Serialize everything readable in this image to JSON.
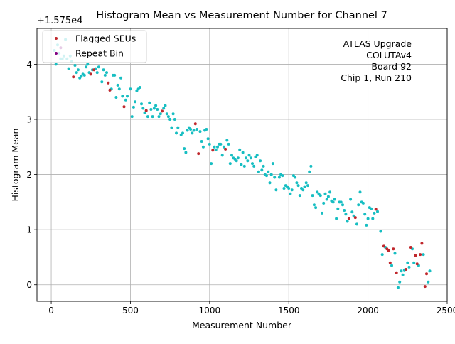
{
  "chart_data": {
    "type": "scatter",
    "title": "Histogram Mean vs Measurement Number for Channel 7",
    "xlabel": "Measurement Number",
    "ylabel": "Histogram Mean",
    "y_offset_label": "+1.575e4",
    "xlim": [
      -90,
      2500
    ],
    "ylim": [
      -0.3,
      4.65
    ],
    "xticks": [
      0,
      500,
      1000,
      1500,
      2000,
      2500
    ],
    "yticks": [
      0,
      1,
      2,
      3,
      4
    ],
    "grid": true,
    "legend_position": "top-left",
    "annotation_lines": [
      "ATLAS Upgrade",
      "COLUTAv4",
      "Board 92",
      "Chip 1, Run 210"
    ],
    "series": [
      {
        "name": "Flagged SEUs",
        "color": "#c0282d",
        "points": [
          [
            140,
            3.77
          ],
          [
            250,
            3.82
          ],
          [
            270,
            3.9
          ],
          [
            360,
            3.66
          ],
          [
            370,
            3.53
          ],
          [
            460,
            3.23
          ],
          [
            600,
            3.16
          ],
          [
            700,
            3.15
          ],
          [
            910,
            2.92
          ],
          [
            930,
            2.38
          ],
          [
            1020,
            2.44
          ],
          [
            1100,
            2.46
          ],
          [
            1880,
            1.2
          ],
          [
            1920,
            1.22
          ],
          [
            2050,
            1.37
          ],
          [
            2100,
            0.7
          ],
          [
            2120,
            0.65
          ],
          [
            2130,
            0.62
          ],
          [
            2140,
            0.4
          ],
          [
            2160,
            0.65
          ],
          [
            2180,
            0.22
          ],
          [
            2240,
            0.28
          ],
          [
            2270,
            0.68
          ],
          [
            2300,
            0.53
          ],
          [
            2310,
            0.38
          ],
          [
            2330,
            0.55
          ],
          [
            2340,
            0.75
          ],
          [
            2360,
            -0.03
          ],
          [
            2370,
            0.2
          ]
        ]
      },
      {
        "name": "Repeat Bin",
        "color": "#800080",
        "points": [
          [
            60,
            4.3
          ]
        ]
      },
      {
        "name": "",
        "color": "#17bec2",
        "points": [
          [
            20,
            4.25
          ],
          [
            30,
            4.0
          ],
          [
            40,
            4.35
          ],
          [
            50,
            4.2
          ],
          [
            60,
            4.1
          ],
          [
            70,
            4.1
          ],
          [
            80,
            4.15
          ],
          [
            90,
            4.45
          ],
          [
            100,
            4.1
          ],
          [
            110,
            3.92
          ],
          [
            120,
            4.15
          ],
          [
            130,
            4.05
          ],
          [
            150,
            3.98
          ],
          [
            160,
            3.85
          ],
          [
            170,
            3.9
          ],
          [
            180,
            3.75
          ],
          [
            190,
            3.78
          ],
          [
            200,
            3.82
          ],
          [
            210,
            3.8
          ],
          [
            220,
            3.95
          ],
          [
            230,
            4.0
          ],
          [
            240,
            3.85
          ],
          [
            260,
            3.9
          ],
          [
            280,
            3.92
          ],
          [
            290,
            3.85
          ],
          [
            300,
            3.95
          ],
          [
            320,
            3.68
          ],
          [
            330,
            3.9
          ],
          [
            340,
            3.8
          ],
          [
            350,
            3.85
          ],
          [
            380,
            3.55
          ],
          [
            390,
            3.8
          ],
          [
            400,
            3.8
          ],
          [
            410,
            3.4
          ],
          [
            420,
            3.62
          ],
          [
            430,
            3.55
          ],
          [
            440,
            3.75
          ],
          [
            450,
            3.42
          ],
          [
            470,
            3.35
          ],
          [
            480,
            3.42
          ],
          [
            500,
            3.55
          ],
          [
            510,
            3.05
          ],
          [
            520,
            3.22
          ],
          [
            530,
            3.32
          ],
          [
            540,
            3.52
          ],
          [
            550,
            3.55
          ],
          [
            560,
            3.58
          ],
          [
            570,
            3.28
          ],
          [
            580,
            3.2
          ],
          [
            590,
            3.12
          ],
          [
            610,
            3.05
          ],
          [
            620,
            3.3
          ],
          [
            630,
            3.18
          ],
          [
            640,
            3.05
          ],
          [
            650,
            3.2
          ],
          [
            660,
            3.25
          ],
          [
            670,
            3.18
          ],
          [
            680,
            3.05
          ],
          [
            690,
            3.1
          ],
          [
            710,
            3.2
          ],
          [
            720,
            3.25
          ],
          [
            730,
            3.1
          ],
          [
            740,
            3.05
          ],
          [
            750,
            3.0
          ],
          [
            760,
            2.85
          ],
          [
            770,
            3.1
          ],
          [
            780,
            3.0
          ],
          [
            790,
            2.75
          ],
          [
            800,
            2.85
          ],
          [
            820,
            2.72
          ],
          [
            830,
            2.75
          ],
          [
            840,
            2.47
          ],
          [
            850,
            2.4
          ],
          [
            860,
            2.8
          ],
          [
            870,
            2.85
          ],
          [
            880,
            2.82
          ],
          [
            890,
            2.75
          ],
          [
            900,
            2.8
          ],
          [
            920,
            2.82
          ],
          [
            940,
            2.78
          ],
          [
            950,
            2.6
          ],
          [
            960,
            2.5
          ],
          [
            970,
            2.8
          ],
          [
            980,
            2.82
          ],
          [
            990,
            2.65
          ],
          [
            1000,
            2.55
          ],
          [
            1010,
            2.2
          ],
          [
            1030,
            2.5
          ],
          [
            1040,
            2.45
          ],
          [
            1050,
            2.5
          ],
          [
            1060,
            2.55
          ],
          [
            1070,
            2.55
          ],
          [
            1080,
            2.35
          ],
          [
            1090,
            2.5
          ],
          [
            1110,
            2.62
          ],
          [
            1120,
            2.55
          ],
          [
            1130,
            2.2
          ],
          [
            1140,
            2.35
          ],
          [
            1150,
            2.3
          ],
          [
            1160,
            2.28
          ],
          [
            1170,
            2.25
          ],
          [
            1180,
            2.3
          ],
          [
            1190,
            2.45
          ],
          [
            1200,
            2.18
          ],
          [
            1210,
            2.4
          ],
          [
            1220,
            2.15
          ],
          [
            1230,
            2.3
          ],
          [
            1240,
            2.25
          ],
          [
            1250,
            2.35
          ],
          [
            1260,
            2.3
          ],
          [
            1270,
            2.2
          ],
          [
            1280,
            2.15
          ],
          [
            1290,
            2.32
          ],
          [
            1300,
            2.35
          ],
          [
            1310,
            2.05
          ],
          [
            1320,
            2.25
          ],
          [
            1330,
            2.08
          ],
          [
            1340,
            2.15
          ],
          [
            1350,
            2.0
          ],
          [
            1360,
            1.98
          ],
          [
            1370,
            2.05
          ],
          [
            1380,
            1.85
          ],
          [
            1390,
            2.0
          ],
          [
            1400,
            2.2
          ],
          [
            1410,
            1.95
          ],
          [
            1420,
            1.72
          ],
          [
            1440,
            1.95
          ],
          [
            1450,
            2.0
          ],
          [
            1460,
            1.98
          ],
          [
            1470,
            1.75
          ],
          [
            1480,
            1.8
          ],
          [
            1490,
            1.78
          ],
          [
            1500,
            1.75
          ],
          [
            1510,
            1.65
          ],
          [
            1520,
            1.72
          ],
          [
            1530,
            1.98
          ],
          [
            1540,
            1.95
          ],
          [
            1550,
            1.85
          ],
          [
            1560,
            1.8
          ],
          [
            1570,
            1.62
          ],
          [
            1580,
            1.75
          ],
          [
            1590,
            1.72
          ],
          [
            1600,
            1.78
          ],
          [
            1610,
            1.85
          ],
          [
            1620,
            1.8
          ],
          [
            1630,
            2.05
          ],
          [
            1640,
            2.15
          ],
          [
            1650,
            1.62
          ],
          [
            1660,
            1.45
          ],
          [
            1670,
            1.4
          ],
          [
            1680,
            1.68
          ],
          [
            1690,
            1.65
          ],
          [
            1700,
            1.62
          ],
          [
            1710,
            1.3
          ],
          [
            1720,
            1.48
          ],
          [
            1730,
            1.65
          ],
          [
            1740,
            1.55
          ],
          [
            1750,
            1.6
          ],
          [
            1760,
            1.68
          ],
          [
            1770,
            1.52
          ],
          [
            1780,
            1.5
          ],
          [
            1790,
            1.55
          ],
          [
            1800,
            1.2
          ],
          [
            1810,
            1.38
          ],
          [
            1820,
            1.5
          ],
          [
            1830,
            1.5
          ],
          [
            1840,
            1.45
          ],
          [
            1850,
            1.35
          ],
          [
            1860,
            1.28
          ],
          [
            1870,
            1.15
          ],
          [
            1890,
            1.55
          ],
          [
            1900,
            1.32
          ],
          [
            1910,
            1.25
          ],
          [
            1930,
            1.1
          ],
          [
            1940,
            1.45
          ],
          [
            1950,
            1.68
          ],
          [
            1960,
            1.5
          ],
          [
            1970,
            1.48
          ],
          [
            1980,
            1.28
          ],
          [
            1990,
            1.08
          ],
          [
            2000,
            1.2
          ],
          [
            2010,
            1.4
          ],
          [
            2020,
            1.38
          ],
          [
            2030,
            1.2
          ],
          [
            2040,
            1.3
          ],
          [
            2060,
            1.33
          ],
          [
            2080,
            0.97
          ],
          [
            2090,
            0.55
          ],
          [
            2110,
            0.68
          ],
          [
            2150,
            0.35
          ],
          [
            2170,
            0.57
          ],
          [
            2190,
            -0.05
          ],
          [
            2200,
            0.05
          ],
          [
            2210,
            0.25
          ],
          [
            2220,
            0.18
          ],
          [
            2230,
            0.27
          ],
          [
            2250,
            0.4
          ],
          [
            2260,
            0.32
          ],
          [
            2280,
            0.65
          ],
          [
            2290,
            0.4
          ],
          [
            2320,
            0.35
          ],
          [
            2350,
            0.55
          ],
          [
            2380,
            0.05
          ],
          [
            2390,
            0.25
          ]
        ]
      }
    ]
  }
}
